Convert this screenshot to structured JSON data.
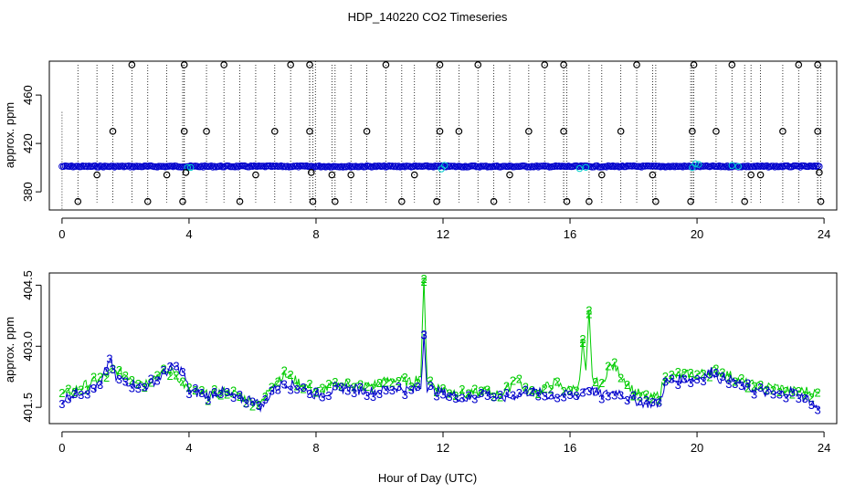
{
  "figure": {
    "title": "HDP_140220  CO2 Timeseries",
    "xlabel": "Hour of Day (UTC)"
  },
  "colors": {
    "outlier": "#000000",
    "blue": "#0000cc",
    "cyan": "#00cccc",
    "green": "#00cc00",
    "axis": "#000000"
  },
  "chart_data": [
    {
      "type": "scatter",
      "title": "HDP_140220  CO2 Timeseries",
      "xlabel": "",
      "ylabel": "approx. ppm",
      "xlim": [
        -0.4,
        24.4
      ],
      "ylim": [
        365,
        488
      ],
      "xticks": [
        0,
        4,
        8,
        12,
        16,
        20,
        24
      ],
      "yticks": [
        380,
        420,
        460
      ],
      "series": [
        {
          "baseline": 401,
          "x_range": [
            0,
            23.9
          ],
          "cyan_x": [
            3.95,
            4.05,
            11.95,
            12.05,
            16.3,
            16.5,
            19.85,
            19.95,
            20.05,
            21.1,
            21.3
          ],
          "high_x": [
            2.2,
            3.85,
            5.1,
            7.2,
            7.8,
            10.2,
            11.9,
            13.1,
            15.2,
            15.8,
            18.1,
            19.9,
            21.1,
            23.2,
            23.8
          ],
          "high_y": 485,
          "mid_x": [
            1.6,
            3.85,
            4.55,
            6.7,
            7.8,
            9.6,
            11.9,
            12.5,
            14.7,
            15.8,
            17.6,
            19.85,
            20.6,
            22.7,
            23.8
          ],
          "mid_y": 430,
          "mid2_x": [
            1.1,
            3.3,
            6.1,
            8.5,
            9.1,
            11.1,
            14.1,
            17.0,
            18.6,
            21.7,
            22.0
          ],
          "mid2_y": 394,
          "low_x": [
            0.5,
            2.7,
            3.8,
            5.6,
            7.9,
            8.6,
            10.7,
            11.8,
            13.6,
            15.9,
            16.6,
            18.7,
            19.8,
            21.5,
            23.9
          ],
          "low_y": 372,
          "below_x": [
            3.9,
            7.85,
            23.85
          ],
          "below_y": 396
        }
      ]
    },
    {
      "type": "scatter",
      "xlabel": "Hour of Day (UTC)",
      "ylabel": "approx. ppm",
      "xlim": [
        -0.4,
        24.4
      ],
      "ylim": [
        401.1,
        404.8
      ],
      "xticks": [
        0,
        4,
        8,
        12,
        16,
        20,
        24
      ],
      "yticks": [
        401.5,
        403.0,
        404.5
      ],
      "marker_labels": {
        "blue": "3",
        "green": "2"
      },
      "series": [
        {
          "marker": "3",
          "knots": [
            [
              0,
              401.7
            ],
            [
              0.6,
              401.9
            ],
            [
              1.2,
              402.0
            ],
            [
              1.5,
              402.7
            ],
            [
              1.7,
              402.2
            ],
            [
              2.2,
              402.1
            ],
            [
              2.6,
              402.0
            ],
            [
              3.0,
              402.2
            ],
            [
              3.5,
              402.5
            ],
            [
              3.8,
              402.4
            ],
            [
              4.0,
              401.9
            ],
            [
              4.6,
              401.8
            ],
            [
              5.0,
              401.9
            ],
            [
              5.5,
              401.7
            ],
            [
              6.0,
              401.7
            ],
            [
              6.3,
              401.5
            ],
            [
              6.6,
              401.9
            ],
            [
              7.0,
              402.1
            ],
            [
              7.5,
              402.0
            ],
            [
              8.0,
              401.8
            ],
            [
              8.5,
              401.9
            ],
            [
              9.0,
              402.0
            ],
            [
              9.5,
              401.9
            ],
            [
              10.0,
              401.9
            ],
            [
              10.5,
              402.0
            ],
            [
              11.0,
              401.9
            ],
            [
              11.3,
              402.0
            ],
            [
              11.4,
              403.3
            ],
            [
              11.5,
              402.0
            ],
            [
              11.8,
              401.9
            ],
            [
              12.3,
              401.8
            ],
            [
              12.8,
              401.7
            ],
            [
              13.3,
              401.9
            ],
            [
              13.8,
              401.7
            ],
            [
              14.3,
              401.8
            ],
            [
              14.8,
              401.9
            ],
            [
              15.3,
              401.8
            ],
            [
              15.8,
              401.8
            ],
            [
              16.3,
              401.8
            ],
            [
              16.5,
              402.0
            ],
            [
              17.0,
              401.8
            ],
            [
              17.5,
              401.9
            ],
            [
              17.9,
              401.7
            ],
            [
              18.4,
              401.6
            ],
            [
              18.8,
              401.6
            ],
            [
              19.0,
              402.1
            ],
            [
              19.5,
              402.2
            ],
            [
              20.0,
              402.2
            ],
            [
              20.5,
              402.4
            ],
            [
              20.7,
              402.2
            ],
            [
              21.0,
              402.2
            ],
            [
              21.5,
              402.0
            ],
            [
              22.0,
              401.9
            ],
            [
              22.5,
              401.8
            ],
            [
              23.0,
              401.9
            ],
            [
              23.5,
              401.7
            ],
            [
              23.9,
              401.4
            ]
          ]
        },
        {
          "marker": "2",
          "knots": [
            [
              0,
              401.8
            ],
            [
              0.6,
              402.0
            ],
            [
              1.2,
              402.2
            ],
            [
              1.6,
              402.4
            ],
            [
              2.0,
              402.3
            ],
            [
              2.6,
              402.1
            ],
            [
              3.0,
              402.3
            ],
            [
              3.5,
              402.4
            ],
            [
              4.0,
              401.9
            ],
            [
              4.6,
              401.8
            ],
            [
              5.2,
              401.9
            ],
            [
              5.8,
              401.7
            ],
            [
              6.3,
              401.6
            ],
            [
              6.6,
              402.1
            ],
            [
              7.0,
              402.3
            ],
            [
              7.5,
              402.1
            ],
            [
              8.0,
              401.9
            ],
            [
              8.5,
              402.0
            ],
            [
              9.0,
              402.1
            ],
            [
              9.5,
              402.0
            ],
            [
              10.0,
              402.1
            ],
            [
              10.5,
              402.2
            ],
            [
              11.0,
              402.1
            ],
            [
              11.3,
              402.3
            ],
            [
              11.4,
              404.6
            ],
            [
              11.5,
              402.2
            ],
            [
              11.8,
              402.0
            ],
            [
              12.3,
              401.9
            ],
            [
              12.8,
              401.8
            ],
            [
              13.3,
              401.9
            ],
            [
              13.8,
              401.8
            ],
            [
              14.1,
              402.0
            ],
            [
              14.3,
              402.3
            ],
            [
              14.6,
              401.9
            ],
            [
              15.0,
              401.9
            ],
            [
              15.5,
              402.1
            ],
            [
              16.0,
              401.9
            ],
            [
              16.3,
              402.1
            ],
            [
              16.4,
              403.1
            ],
            [
              16.5,
              402.3
            ],
            [
              16.6,
              403.8
            ],
            [
              16.7,
              402.2
            ],
            [
              17.0,
              402.0
            ],
            [
              17.2,
              402.5
            ],
            [
              17.4,
              402.5
            ],
            [
              17.6,
              402.3
            ],
            [
              18.0,
              401.9
            ],
            [
              18.5,
              401.7
            ],
            [
              18.8,
              401.8
            ],
            [
              19.0,
              402.2
            ],
            [
              19.5,
              402.3
            ],
            [
              20.0,
              402.3
            ],
            [
              20.5,
              402.4
            ],
            [
              21.0,
              402.3
            ],
            [
              21.5,
              402.1
            ],
            [
              22.0,
              402.0
            ],
            [
              22.5,
              402.0
            ],
            [
              23.0,
              401.9
            ],
            [
              23.5,
              401.9
            ],
            [
              23.9,
              401.8
            ]
          ]
        }
      ]
    }
  ]
}
